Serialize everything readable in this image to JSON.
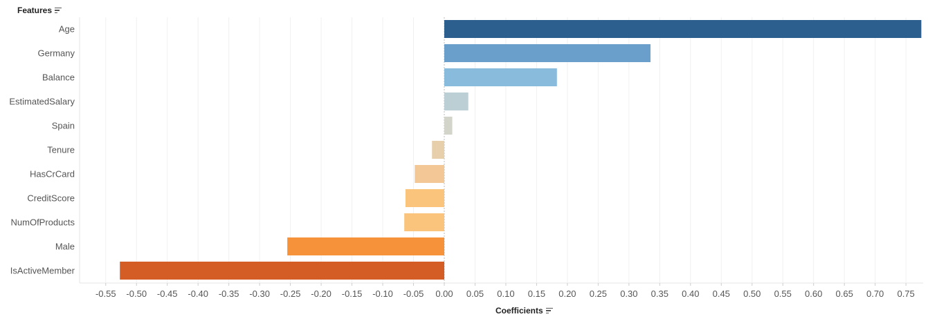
{
  "header": {
    "features_label": "Features",
    "coefficients_label": "Coefficients"
  },
  "chart_data": {
    "type": "bar",
    "orientation": "horizontal",
    "xlabel": "Coefficients",
    "ylabel": "Features",
    "xlim": [
      -0.59,
      0.78
    ],
    "grid": true,
    "ticks": [
      "-0.55",
      "-0.50",
      "-0.45",
      "-0.40",
      "-0.35",
      "-0.30",
      "-0.25",
      "-0.20",
      "-0.15",
      "-0.10",
      "-0.05",
      "0.00",
      "0.05",
      "0.10",
      "0.15",
      "0.20",
      "0.25",
      "0.30",
      "0.35",
      "0.40",
      "0.45",
      "0.50",
      "0.55",
      "0.60",
      "0.65",
      "0.70",
      "0.75"
    ],
    "categories": [
      "Age",
      "Germany",
      "Balance",
      "EstimatedSalary",
      "Spain",
      "Tenure",
      "HasCrCard",
      "CreditScore",
      "NumOfProducts",
      "Male",
      "IsActiveMember"
    ],
    "values": [
      0.775,
      0.335,
      0.183,
      0.039,
      0.013,
      -0.02,
      -0.048,
      -0.063,
      -0.065,
      -0.255,
      -0.527
    ],
    "colors": [
      "#2c5f8e",
      "#6a9ecb",
      "#88bbdc",
      "#bccfd4",
      "#d3d5cb",
      "#e8cfac",
      "#f3c896",
      "#fbc47c",
      "#fbc47c",
      "#f6923a",
      "#d45d25"
    ]
  }
}
